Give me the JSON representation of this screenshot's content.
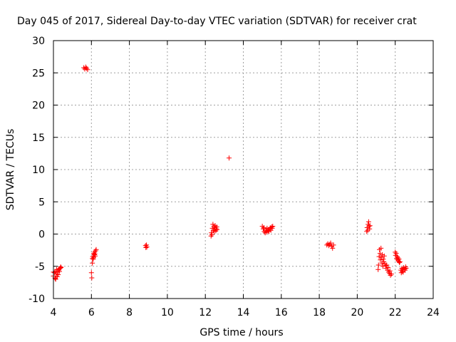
{
  "chart_data": {
    "type": "scatter",
    "title": "Day 045 of 2017, Sidereal Day-to-day VTEC variation (SDTVAR) for receiver crat",
    "xlabel": "GPS time / hours",
    "ylabel": "SDTVAR / TECUs",
    "xlim": [
      4,
      24
    ],
    "ylim": [
      -10,
      30
    ],
    "xticks": [
      4,
      6,
      8,
      10,
      12,
      14,
      16,
      18,
      20,
      22,
      24
    ],
    "yticks": [
      -10,
      -5,
      0,
      5,
      10,
      15,
      20,
      25,
      30
    ],
    "grid": true,
    "marker": "+",
    "color": "#ff0000",
    "series": [
      {
        "name": "SDTVAR",
        "points": [
          [
            4.0,
            -6.5
          ],
          [
            4.05,
            -6.0
          ],
          [
            4.08,
            -6.8
          ],
          [
            4.1,
            -5.8
          ],
          [
            4.12,
            -7.0
          ],
          [
            4.15,
            -6.2
          ],
          [
            4.17,
            -5.5
          ],
          [
            4.2,
            -6.6
          ],
          [
            4.22,
            -5.9
          ],
          [
            4.25,
            -6.3
          ],
          [
            4.27,
            -5.6
          ],
          [
            4.3,
            -5.4
          ],
          [
            4.32,
            -5.8
          ],
          [
            4.35,
            -5.3
          ],
          [
            4.38,
            -5.1
          ],
          [
            4.4,
            -5.2
          ],
          [
            4.0,
            -5.9
          ],
          [
            4.1,
            -6.9
          ],
          [
            5.6,
            25.8
          ],
          [
            5.65,
            25.6
          ],
          [
            5.7,
            25.9
          ],
          [
            5.75,
            25.7
          ],
          [
            5.8,
            25.5
          ],
          [
            6.0,
            -6.0
          ],
          [
            6.02,
            -6.8
          ],
          [
            6.05,
            -4.5
          ],
          [
            6.07,
            -3.5
          ],
          [
            6.1,
            -3.9
          ],
          [
            6.12,
            -3.0
          ],
          [
            6.15,
            -3.2
          ],
          [
            6.17,
            -2.8
          ],
          [
            6.2,
            -3.4
          ],
          [
            6.22,
            -2.6
          ],
          [
            6.25,
            -2.4
          ],
          [
            6.05,
            -3.8
          ],
          [
            6.12,
            -3.6
          ],
          [
            6.18,
            -3.1
          ],
          [
            8.85,
            -1.8
          ],
          [
            8.87,
            -2.1
          ],
          [
            8.9,
            -1.7
          ],
          [
            8.92,
            -2.0
          ],
          [
            12.3,
            -0.3
          ],
          [
            12.32,
            0.2
          ],
          [
            12.35,
            -0.1
          ],
          [
            12.37,
            0.9
          ],
          [
            12.4,
            1.5
          ],
          [
            12.42,
            0.6
          ],
          [
            12.45,
            1.2
          ],
          [
            12.47,
            0.4
          ],
          [
            12.5,
            1.0
          ],
          [
            12.52,
            1.3
          ],
          [
            12.55,
            0.5
          ],
          [
            12.57,
            0.8
          ],
          [
            12.6,
            1.1
          ],
          [
            12.62,
            0.7
          ],
          [
            13.25,
            11.8
          ],
          [
            15.0,
            1.2
          ],
          [
            15.05,
            0.8
          ],
          [
            15.08,
            1.0
          ],
          [
            15.1,
            0.4
          ],
          [
            15.15,
            0.2
          ],
          [
            15.2,
            0.6
          ],
          [
            15.22,
            0.3
          ],
          [
            15.25,
            0.9
          ],
          [
            15.3,
            0.5
          ],
          [
            15.32,
            0.7
          ],
          [
            15.35,
            0.4
          ],
          [
            15.4,
            0.8
          ],
          [
            15.42,
            1.0
          ],
          [
            15.45,
            0.6
          ],
          [
            15.5,
            1.1
          ],
          [
            15.52,
            0.9
          ],
          [
            15.55,
            1.2
          ],
          [
            18.4,
            -1.7
          ],
          [
            18.45,
            -1.5
          ],
          [
            18.5,
            -1.8
          ],
          [
            18.55,
            -1.6
          ],
          [
            18.6,
            -1.4
          ],
          [
            18.65,
            -1.9
          ],
          [
            18.7,
            -2.2
          ],
          [
            18.75,
            -1.7
          ],
          [
            20.5,
            0.4
          ],
          [
            20.52,
            1.0
          ],
          [
            20.55,
            0.6
          ],
          [
            20.57,
            1.5
          ],
          [
            20.6,
            1.9
          ],
          [
            20.62,
            1.2
          ],
          [
            20.65,
            0.8
          ],
          [
            20.67,
            1.3
          ],
          [
            21.1,
            -5.5
          ],
          [
            21.12,
            -4.8
          ],
          [
            21.15,
            -3.5
          ],
          [
            21.17,
            -2.4
          ],
          [
            21.2,
            -3.0
          ],
          [
            21.22,
            -4.0
          ],
          [
            21.25,
            -2.2
          ],
          [
            21.27,
            -3.6
          ],
          [
            21.3,
            -4.5
          ],
          [
            21.32,
            -3.2
          ],
          [
            21.35,
            -5.0
          ],
          [
            21.37,
            -3.9
          ],
          [
            21.4,
            -4.3
          ],
          [
            21.42,
            -3.4
          ],
          [
            21.45,
            -4.6
          ],
          [
            21.5,
            -4.9
          ],
          [
            21.52,
            -5.3
          ],
          [
            21.55,
            -4.8
          ],
          [
            21.6,
            -5.6
          ],
          [
            21.62,
            -5.2
          ],
          [
            21.65,
            -5.9
          ],
          [
            21.7,
            -6.1
          ],
          [
            21.72,
            -5.7
          ],
          [
            21.75,
            -6.4
          ],
          [
            21.8,
            -6.2
          ],
          [
            22.0,
            -2.8
          ],
          [
            22.02,
            -3.3
          ],
          [
            22.05,
            -3.0
          ],
          [
            22.07,
            -3.8
          ],
          [
            22.1,
            -3.5
          ],
          [
            22.12,
            -4.0
          ],
          [
            22.15,
            -3.7
          ],
          [
            22.17,
            -4.2
          ],
          [
            22.2,
            -3.9
          ],
          [
            22.22,
            -4.4
          ],
          [
            22.25,
            -4.3
          ],
          [
            22.3,
            -5.6
          ],
          [
            22.32,
            -6.0
          ],
          [
            22.35,
            -5.3
          ],
          [
            22.37,
            -5.8
          ],
          [
            22.4,
            -5.5
          ],
          [
            22.42,
            -5.9
          ],
          [
            22.45,
            -5.2
          ],
          [
            22.5,
            -5.4
          ],
          [
            22.52,
            -5.6
          ],
          [
            22.55,
            -5.1
          ],
          [
            22.57,
            -5.3
          ]
        ]
      }
    ]
  }
}
